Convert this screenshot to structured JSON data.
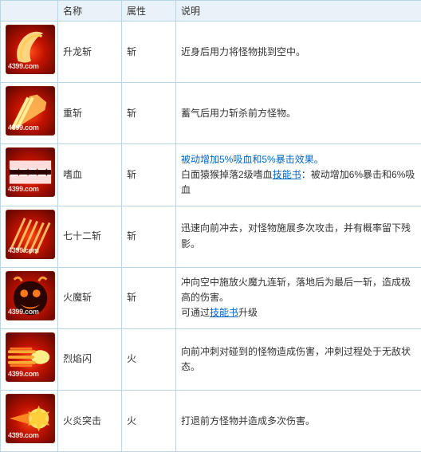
{
  "headers": {
    "icon": "",
    "name": "名称",
    "attr": "属性",
    "desc": "说明"
  },
  "watermark": "4399.com",
  "link_text": "技能书",
  "rows": [
    {
      "name": "升龙斩",
      "attr": "斩",
      "desc_plain": "近身后用力将怪物挑到空中。",
      "icon_svg": "dragon"
    },
    {
      "name": "重斩",
      "attr": "斩",
      "desc_plain": "蓄气后用力斩杀前方怪物。",
      "icon_svg": "heavy"
    },
    {
      "name": "嗜血",
      "attr": "斩",
      "desc_highlight": "被动增加5%吸血和5%暴击效果。",
      "desc_before_link": "白面猿猴掉落2级嗜血",
      "desc_after_link": "：被动增加6%暴击和6%吸血",
      "icon_svg": "teeth"
    },
    {
      "name": "七十二斩",
      "attr": "斩",
      "desc_plain": "迅速向前冲去，对怪物施展多次攻击，并有概率留下残影。",
      "icon_svg": "seventytwo"
    },
    {
      "name": "火魔斩",
      "attr": "斩",
      "desc_before_link": "冲向空中施放火魔九连斩，落地后为最后一斩，造成极高的伤害。\n可通过",
      "desc_after_link": "升级",
      "icon_svg": "facefire"
    },
    {
      "name": "烈焰闪",
      "attr": "火",
      "desc_plain": "向前冲刺对碰到的怪物造成伤害，冲刺过程处于无敌状态。",
      "icon_svg": "dash"
    },
    {
      "name": "火炎突击",
      "attr": "火",
      "desc_plain": "打退前方怪物并造成多次伤害。",
      "icon_svg": "burst"
    }
  ],
  "icon_bg_gradient": [
    "#ff4a1a",
    "#c21200",
    "#5a0600"
  ]
}
